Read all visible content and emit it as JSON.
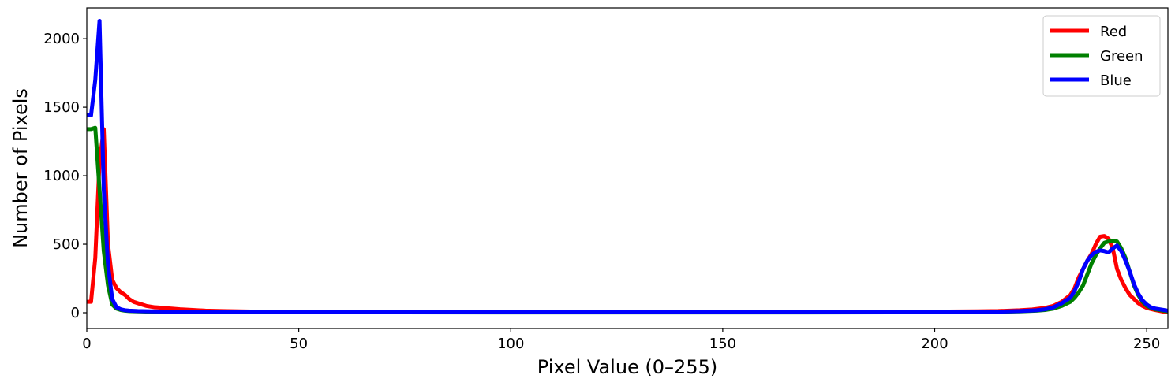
{
  "chart_data": {
    "type": "line",
    "title": "",
    "xlabel": "Pixel Value (0–255)",
    "ylabel": "Number of Pixels",
    "xlim": [
      0,
      255
    ],
    "ylim": [
      -115,
      2225
    ],
    "xticks": [
      0,
      50,
      100,
      150,
      200,
      250
    ],
    "yticks": [
      0,
      500,
      1000,
      1500,
      2000
    ],
    "grid": false,
    "legend": "top-right",
    "series": [
      {
        "name": "Red",
        "color": "#ff0000",
        "points": [
          [
            0,
            80
          ],
          [
            1,
            80
          ],
          [
            2,
            400
          ],
          [
            3,
            1100
          ],
          [
            4,
            1340
          ],
          [
            5,
            500
          ],
          [
            6,
            240
          ],
          [
            7,
            180
          ],
          [
            8,
            150
          ],
          [
            9,
            130
          ],
          [
            10,
            100
          ],
          [
            11,
            80
          ],
          [
            12,
            70
          ],
          [
            13,
            60
          ],
          [
            14,
            50
          ],
          [
            15,
            45
          ],
          [
            16,
            40
          ],
          [
            17,
            38
          ],
          [
            18,
            35
          ],
          [
            19,
            32
          ],
          [
            20,
            30
          ],
          [
            22,
            25
          ],
          [
            25,
            20
          ],
          [
            28,
            15
          ],
          [
            32,
            12
          ],
          [
            36,
            10
          ],
          [
            40,
            8
          ],
          [
            50,
            6
          ],
          [
            60,
            5
          ],
          [
            80,
            4
          ],
          [
            100,
            3
          ],
          [
            120,
            3
          ],
          [
            140,
            3
          ],
          [
            160,
            3
          ],
          [
            180,
            4
          ],
          [
            190,
            6
          ],
          [
            200,
            8
          ],
          [
            210,
            10
          ],
          [
            215,
            12
          ],
          [
            220,
            18
          ],
          [
            223,
            24
          ],
          [
            226,
            35
          ],
          [
            228,
            50
          ],
          [
            230,
            80
          ],
          [
            232,
            130
          ],
          [
            233,
            180
          ],
          [
            234,
            260
          ],
          [
            235,
            320
          ],
          [
            236,
            380
          ],
          [
            237,
            430
          ],
          [
            238,
            500
          ],
          [
            239,
            555
          ],
          [
            240,
            560
          ],
          [
            241,
            540
          ],
          [
            242,
            470
          ],
          [
            243,
            320
          ],
          [
            244,
            240
          ],
          [
            245,
            180
          ],
          [
            246,
            130
          ],
          [
            247,
            100
          ],
          [
            248,
            70
          ],
          [
            249,
            50
          ],
          [
            250,
            35
          ],
          [
            252,
            20
          ],
          [
            254,
            8
          ],
          [
            255,
            5
          ]
        ]
      },
      {
        "name": "Green",
        "color": "#008000",
        "points": [
          [
            0,
            1340
          ],
          [
            1,
            1340
          ],
          [
            2,
            1350
          ],
          [
            3,
            900
          ],
          [
            4,
            450
          ],
          [
            5,
            200
          ],
          [
            6,
            60
          ],
          [
            7,
            30
          ],
          [
            8,
            20
          ],
          [
            9,
            15
          ],
          [
            10,
            12
          ],
          [
            12,
            10
          ],
          [
            15,
            8
          ],
          [
            20,
            7
          ],
          [
            25,
            6
          ],
          [
            30,
            5
          ],
          [
            40,
            4
          ],
          [
            50,
            3
          ],
          [
            70,
            3
          ],
          [
            100,
            2
          ],
          [
            130,
            2
          ],
          [
            150,
            2
          ],
          [
            170,
            2
          ],
          [
            190,
            3
          ],
          [
            200,
            4
          ],
          [
            210,
            5
          ],
          [
            215,
            7
          ],
          [
            220,
            10
          ],
          [
            224,
            15
          ],
          [
            226,
            20
          ],
          [
            228,
            30
          ],
          [
            230,
            50
          ],
          [
            232,
            80
          ],
          [
            233,
            110
          ],
          [
            234,
            150
          ],
          [
            235,
            200
          ],
          [
            236,
            280
          ],
          [
            237,
            360
          ],
          [
            238,
            420
          ],
          [
            239,
            470
          ],
          [
            240,
            510
          ],
          [
            241,
            520
          ],
          [
            242,
            525
          ],
          [
            243,
            520
          ],
          [
            244,
            470
          ],
          [
            245,
            400
          ],
          [
            246,
            300
          ],
          [
            247,
            200
          ],
          [
            248,
            130
          ],
          [
            249,
            80
          ],
          [
            250,
            50
          ],
          [
            251,
            35
          ],
          [
            252,
            25
          ],
          [
            254,
            15
          ],
          [
            255,
            10
          ]
        ]
      },
      {
        "name": "Blue",
        "color": "#0000ff",
        "points": [
          [
            0,
            1440
          ],
          [
            1,
            1440
          ],
          [
            2,
            1700
          ],
          [
            3,
            2130
          ],
          [
            4,
            900
          ],
          [
            5,
            350
          ],
          [
            6,
            100
          ],
          [
            7,
            40
          ],
          [
            8,
            25
          ],
          [
            9,
            18
          ],
          [
            10,
            15
          ],
          [
            12,
            12
          ],
          [
            15,
            10
          ],
          [
            20,
            8
          ],
          [
            25,
            7
          ],
          [
            30,
            6
          ],
          [
            40,
            5
          ],
          [
            50,
            4
          ],
          [
            70,
            3
          ],
          [
            100,
            3
          ],
          [
            130,
            3
          ],
          [
            150,
            3
          ],
          [
            170,
            3
          ],
          [
            190,
            4
          ],
          [
            200,
            5
          ],
          [
            210,
            6
          ],
          [
            215,
            8
          ],
          [
            220,
            12
          ],
          [
            224,
            18
          ],
          [
            226,
            25
          ],
          [
            228,
            40
          ],
          [
            230,
            70
          ],
          [
            232,
            110
          ],
          [
            233,
            160
          ],
          [
            234,
            230
          ],
          [
            235,
            320
          ],
          [
            236,
            380
          ],
          [
            237,
            420
          ],
          [
            238,
            445
          ],
          [
            239,
            455
          ],
          [
            240,
            450
          ],
          [
            241,
            440
          ],
          [
            242,
            470
          ],
          [
            243,
            490
          ],
          [
            244,
            450
          ],
          [
            245,
            380
          ],
          [
            246,
            300
          ],
          [
            247,
            210
          ],
          [
            248,
            140
          ],
          [
            249,
            90
          ],
          [
            250,
            60
          ],
          [
            251,
            40
          ],
          [
            252,
            30
          ],
          [
            254,
            20
          ],
          [
            255,
            15
          ]
        ]
      }
    ]
  }
}
